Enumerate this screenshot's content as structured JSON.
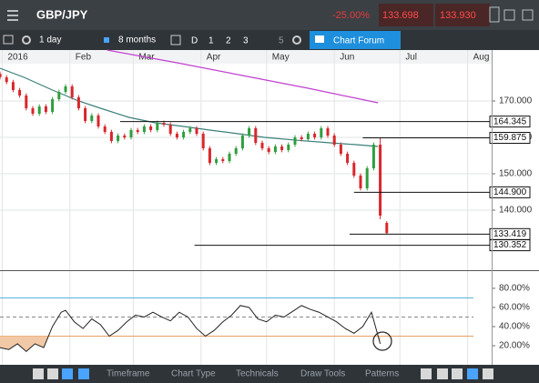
{
  "ui": {
    "symbol": "GBP/JPY",
    "change": "-25.00%",
    "sell": "133.698",
    "buy": "133.930",
    "toolbar": {
      "interval": "1 day",
      "range": "8 months",
      "views": [
        "D",
        "1",
        "2",
        "3",
        "5"
      ],
      "forum": "Chart Forum"
    },
    "bottom": [
      "Timeframe",
      "Chart Type",
      "Technicals",
      "Draw Tools",
      "Patterns"
    ]
  },
  "chart_data": [
    {
      "type": "candlestick",
      "xlim": [
        -1,
        224
      ],
      "ylim": [
        123.5,
        184
      ],
      "xticks": [
        {
          "value": 0,
          "label": "2016"
        },
        {
          "value": 31,
          "label": "Feb"
        },
        {
          "value": 60,
          "label": "Mar"
        },
        {
          "value": 91,
          "label": "Apr"
        },
        {
          "value": 121,
          "label": "May"
        },
        {
          "value": 152,
          "label": "Jun"
        },
        {
          "value": 182,
          "label": "Jul"
        },
        {
          "value": 213,
          "label": "Aug"
        }
      ],
      "yticks": [
        {
          "value": 170,
          "label": "170.000"
        },
        {
          "value": 160,
          "label": "160.000"
        },
        {
          "value": 150,
          "label": "150.000"
        },
        {
          "value": 140,
          "label": "140.000"
        }
      ],
      "up_color": "#2e9e3e",
      "down_color": "#d9262b",
      "x": [
        -1,
        2,
        5,
        8,
        11,
        14,
        17,
        20,
        23,
        26,
        29,
        32,
        35,
        38,
        41,
        44,
        47,
        50,
        53,
        56,
        59,
        62,
        65,
        68,
        71,
        74,
        77,
        80,
        83,
        86,
        89,
        92,
        95,
        98,
        101,
        104,
        107,
        110,
        113,
        116,
        119,
        122,
        125,
        128,
        131,
        134,
        137,
        140,
        143,
        146,
        149,
        152,
        155,
        158,
        161,
        164,
        167,
        170,
        173,
        176
      ],
      "open": [
        177.5,
        176.5,
        175.2,
        173.0,
        171.5,
        168.0,
        166.5,
        168.5,
        167.0,
        170.5,
        172.5,
        174.0,
        171.0,
        168.0,
        164.5,
        166.0,
        163.0,
        161.5,
        159.0,
        160.5,
        160.0,
        162.0,
        161.5,
        163.0,
        162.0,
        164.0,
        163.5,
        161.0,
        160.0,
        161.5,
        162.5,
        161.0,
        157.0,
        153.0,
        154.0,
        153.5,
        155.5,
        157.0,
        160.5,
        162.5,
        158.5,
        157.0,
        156.0,
        157.5,
        156.5,
        158.0,
        160.0,
        159.5,
        161.0,
        160.0,
        162.5,
        160.5,
        158.0,
        155.5,
        153.0,
        149.5,
        146.0,
        151.5,
        158.0,
        136.5
      ],
      "high": [
        178.1,
        177.1,
        175.8,
        173.6,
        172.1,
        168.6,
        169.1,
        169.1,
        171.1,
        173.1,
        174.6,
        174.6,
        171.6,
        168.6,
        166.6,
        166.6,
        163.6,
        162.1,
        161.1,
        161.1,
        162.6,
        162.6,
        163.6,
        163.6,
        164.6,
        164.6,
        164.1,
        161.6,
        162.1,
        163.1,
        163.1,
        161.6,
        157.6,
        154.6,
        154.6,
        156.1,
        157.6,
        161.1,
        163.1,
        163.1,
        159.1,
        157.6,
        158.1,
        158.1,
        158.6,
        160.6,
        160.6,
        161.6,
        161.6,
        163.1,
        163.1,
        161.1,
        158.6,
        156.1,
        153.6,
        150.1,
        152.1,
        158.6,
        159.9,
        137.0
      ],
      "low": [
        175.9,
        174.6,
        172.4,
        170.9,
        167.4,
        165.9,
        165.9,
        166.4,
        166.4,
        169.9,
        171.9,
        170.4,
        167.4,
        163.9,
        163.9,
        162.4,
        160.9,
        158.4,
        158.4,
        159.4,
        159.4,
        160.9,
        160.9,
        161.4,
        161.4,
        162.9,
        160.4,
        159.4,
        159.4,
        160.9,
        160.4,
        156.4,
        152.4,
        152.4,
        152.9,
        152.9,
        154.9,
        156.4,
        159.9,
        157.9,
        156.4,
        155.4,
        155.4,
        155.9,
        155.9,
        157.4,
        158.9,
        158.9,
        159.4,
        159.4,
        159.9,
        157.4,
        154.9,
        152.4,
        148.9,
        145.4,
        145.4,
        150.9,
        137.5,
        133.4
      ],
      "close": [
        176.5,
        175.2,
        173.0,
        171.5,
        168.0,
        166.5,
        168.5,
        167.0,
        170.5,
        172.5,
        174.0,
        171.0,
        168.0,
        164.5,
        166.0,
        163.0,
        161.5,
        159.0,
        160.5,
        160.0,
        162.0,
        161.5,
        163.0,
        162.0,
        164.0,
        163.5,
        161.0,
        160.0,
        161.5,
        162.5,
        161.0,
        157.0,
        153.0,
        154.0,
        153.5,
        155.5,
        157.0,
        160.5,
        162.5,
        158.5,
        157.0,
        156.0,
        157.5,
        156.5,
        158.0,
        160.0,
        159.5,
        161.0,
        160.0,
        162.5,
        160.5,
        158.0,
        155.5,
        153.0,
        149.5,
        146.0,
        151.5,
        158.0,
        138.5,
        133.7
      ],
      "overlays": [
        {
          "color": "#3a7f7a",
          "x": [
            -1,
            10,
            23,
            35,
            45,
            58,
            70,
            83,
            95,
            108,
            120,
            135,
            150,
            162,
            172
          ],
          "values": [
            179,
            176.5,
            173,
            170,
            168,
            165.5,
            164,
            163,
            162,
            161,
            160,
            159.2,
            158.5,
            158,
            157.5
          ]
        },
        {
          "color": "#c040d0",
          "x": [
            48,
            80,
            110,
            140,
            172
          ],
          "values": [
            184,
            180.5,
            177,
            173.5,
            169.5
          ]
        }
      ],
      "levels": {
        "values": [
          164.345,
          159.875,
          144.9,
          133.419,
          130.352
        ],
        "value_labels": [
          "164.345",
          "159.875",
          "144.900",
          "133.419",
          "130.352"
        ],
        "x_start": [
          54,
          165,
          161,
          159,
          88
        ]
      }
    },
    {
      "type": "line",
      "color": "#222",
      "fill_below": 30,
      "fill_color": "#f2c9a6",
      "ylim": [
        1,
        98
      ],
      "yticks": [
        {
          "value": 80,
          "label": "80.00%"
        },
        {
          "value": 60,
          "label": "60.00%"
        },
        {
          "value": 40,
          "label": "40.00%"
        },
        {
          "value": 20,
          "label": "20.00%"
        }
      ],
      "levels": [
        70,
        50,
        30
      ],
      "level_colors": [
        "#5ab4d6",
        "#888",
        "#e8a060"
      ],
      "x": [
        -1,
        3,
        7,
        11,
        15,
        19,
        23,
        27,
        29,
        33,
        37,
        41,
        45,
        49,
        53,
        57,
        61,
        65,
        69,
        73,
        77,
        81,
        85,
        89,
        93,
        97,
        101,
        105,
        109,
        113,
        117,
        121,
        125,
        129,
        133,
        137,
        141,
        145,
        149,
        153,
        157,
        161,
        165,
        169,
        173
      ],
      "values": [
        18,
        16,
        22,
        14,
        22,
        18,
        40,
        55,
        57,
        45,
        38,
        48,
        42,
        30,
        36,
        45,
        52,
        50,
        55,
        50,
        46,
        55,
        50,
        38,
        30,
        36,
        45,
        52,
        62,
        60,
        48,
        45,
        52,
        50,
        56,
        62,
        58,
        55,
        50,
        45,
        38,
        33,
        40,
        55,
        22
      ]
    }
  ]
}
